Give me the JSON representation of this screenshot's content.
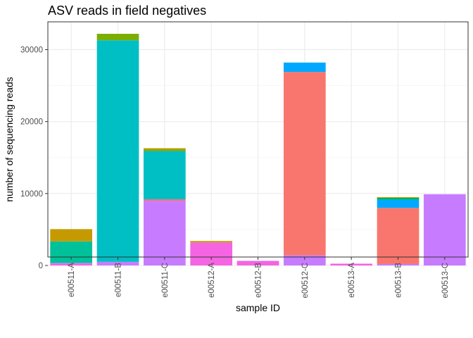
{
  "chart_data": {
    "type": "bar",
    "stacked": true,
    "title": "ASV reads in field negatives",
    "xlabel": "sample ID",
    "ylabel": "number of sequencing reads",
    "ylim": [
      0,
      33500
    ],
    "yticks": [
      0,
      10000,
      20000,
      30000
    ],
    "ytick_labels": [
      "0",
      "10000",
      "20000",
      "30000"
    ],
    "grid": true,
    "legend": "none",
    "categories": [
      "e00511-A",
      "e00511-B",
      "e00511-C",
      "e00512-A",
      "e00512-B",
      "e00512-C",
      "e00513-A",
      "e00513-B",
      "e00513-C"
    ],
    "series": [
      {
        "color": "#F564E3",
        "values": [
          200,
          0,
          0,
          3200,
          600,
          0,
          250,
          0,
          0
        ]
      },
      {
        "color": "#C77CFF",
        "values": [
          150,
          500,
          9000,
          0,
          50,
          1400,
          0,
          200,
          9900
        ]
      },
      {
        "color": "#F8766D",
        "values": [
          0,
          0,
          200,
          0,
          0,
          25500,
          0,
          7800,
          0
        ]
      },
      {
        "color": "#00A9FF",
        "values": [
          0,
          0,
          0,
          0,
          0,
          1300,
          0,
          1200,
          0
        ]
      },
      {
        "color": "#00BFC4",
        "values": [
          0,
          30800,
          6700,
          0,
          0,
          0,
          0,
          0,
          0
        ]
      },
      {
        "color": "#00C19A",
        "values": [
          3000,
          0,
          0,
          0,
          0,
          0,
          0,
          0,
          0
        ]
      },
      {
        "color": "#00BA38",
        "values": [
          0,
          0,
          0,
          0,
          0,
          0,
          0,
          200,
          0
        ]
      },
      {
        "color": "#7CAE00",
        "values": [
          0,
          900,
          200,
          0,
          0,
          0,
          0,
          0,
          0
        ]
      },
      {
        "color": "#C49A00",
        "values": [
          1700,
          0,
          200,
          200,
          0,
          0,
          0,
          100,
          0
        ]
      }
    ]
  }
}
